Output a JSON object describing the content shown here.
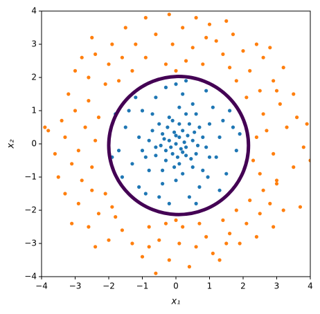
{
  "chart_data": {
    "type": "scatter",
    "xlabel": "x₁",
    "ylabel": "x₂",
    "xlim": [
      -4,
      4
    ],
    "ylim": [
      -4,
      4
    ],
    "xticks": [
      {
        "value": -4,
        "label": "−4"
      },
      {
        "value": -3,
        "label": "−3"
      },
      {
        "value": -2,
        "label": "−2"
      },
      {
        "value": -1,
        "label": "−1"
      },
      0,
      1,
      2,
      3,
      4
    ],
    "yticks": [
      {
        "value": -4,
        "label": "−4"
      },
      {
        "value": -3,
        "label": "−3"
      },
      {
        "value": -2,
        "label": "−2"
      },
      {
        "value": -1,
        "label": "−1"
      },
      0,
      1,
      2,
      3,
      4
    ],
    "grid": false,
    "series": [
      {
        "color": "#1f77b4",
        "x": [
          0,
          0.1,
          -0.2,
          0.3,
          -0.1,
          0.2,
          -0.4,
          0.5,
          -0.3,
          0.1,
          0.6,
          -0.6,
          0.4,
          -0.5,
          0.7,
          -0.7,
          0.2,
          -0.2,
          0.9,
          -0.9,
          0.3,
          -0.8,
          1.0,
          -1.1,
          0.8,
          0.0,
          -0.4,
          1.2,
          0.5,
          -1.0,
          1.3,
          -1.3,
          0.7,
          -0.6,
          1.1,
          0.2,
          -1.5,
          1.5,
          -0.9,
          0.4,
          -1.7,
          1.7,
          0.9,
          -1.2,
          1.3,
          -0.2,
          0.0,
          -1.6,
          1.8,
          -1.8,
          0.15,
          -0.05,
          0.25,
          -0.3,
          0.05,
          0.35,
          -0.15,
          0.45,
          -0.45,
          0.1,
          -0.25,
          0.55,
          -0.6,
          0.0,
          0.3,
          -0.1,
          0.65,
          -0.35,
          0.2,
          -0.05,
          0.8,
          -0.8,
          0.5,
          -0.4,
          0.6,
          1.0,
          -1.0,
          0.1,
          -0.7,
          0.95,
          1.4,
          -1.4,
          -0.3,
          0.6,
          1.6,
          -1.1,
          1.9,
          -1.9,
          0.3,
          -0.5
        ],
        "y": [
          0,
          0.2,
          0.1,
          -0.1,
          -0.3,
          0.4,
          0.3,
          0.1,
          -0.5,
          -0.6,
          -0.3,
          -0.1,
          0.6,
          0.6,
          0.5,
          0.4,
          -0.9,
          0.8,
          -0.1,
          -0.4,
          0.9,
          -0.8,
          0.6,
          0.2,
          -0.8,
          -1.1,
          -1.2,
          -0.4,
          1.2,
          1.0,
          0.2,
          -0.6,
          -1.3,
          1.4,
          1.1,
          1.5,
          0.5,
          -0.9,
          -1.5,
          -1.6,
          -0.2,
          0.5,
          1.6,
          1.4,
          -1.4,
          -1.8,
          1.8,
          -1.0,
          -0.2,
          0.9,
          -0.15,
          0.35,
          0.05,
          -0.2,
          -0.4,
          0.25,
          -0.1,
          -0.45,
          -0.05,
          0.6,
          0.5,
          0.35,
          -0.35,
          0.25,
          -0.35,
          0.7,
          -0.05,
          0.15,
          -0.25,
          -0.7,
          0.2,
          0.1,
          -0.7,
          -0.8,
          0.9,
          -0.4,
          -0.2,
          1.1,
          0.9,
          -1.0,
          0.7,
          1.0,
          1.7,
          -1.8,
          1.0,
          -1.3,
          0.3,
          -0.4,
          1.9,
          -1.6
        ]
      },
      {
        "color": "#ff7f0e",
        "x": [
          2.4,
          2.9,
          3.3,
          3.8,
          2.6,
          3.1,
          3.6,
          2.5,
          3.0,
          3.5,
          2.3,
          2.7,
          3.9,
          4.0,
          2.1,
          2.5,
          2.9,
          3.2,
          1.8,
          2.2,
          2.6,
          1.6,
          2.0,
          1.4,
          1.2,
          1.7,
          2.4,
          3.0,
          3.5,
          2.8,
          0.8,
          0.3,
          -0.3,
          0.5,
          -0.1,
          0.9,
          0.2,
          -0.6,
          0.6,
          -0.2,
          1.0,
          1.5,
          -0.9,
          0.0,
          -1.3,
          -1.6,
          -2.0,
          -1.2,
          -1.9,
          -2.4,
          -2.1,
          -2.6,
          -2.8,
          -1.5,
          -2.5,
          -3.0,
          -0.9,
          -1.7,
          -2.3,
          -2.6,
          -3.0,
          -3.4,
          -2.4,
          -2.9,
          -3.3,
          -3.8,
          -2.5,
          -3.1,
          -3.6,
          -3.9,
          -3.2,
          -2.7,
          -3.5,
          -2.1,
          -2.5,
          -2.9,
          -2.3,
          -1.8,
          -2.6,
          -1.6,
          -2.0,
          -3.1,
          -1.3,
          -2.4,
          -3.3,
          -1.9,
          -2.8,
          -0.8,
          -0.3,
          0.2,
          0.7,
          -0.5,
          0.1,
          0.6,
          -1.0,
          -0.2,
          0.4,
          -0.6,
          0.9,
          1.1,
          -0.8,
          0.0,
          1.4,
          1.8,
          2.2,
          1.6,
          2.1,
          2.5,
          1.9,
          2.4,
          2.8,
          1.3,
          2.9,
          3.2,
          2.6,
          1.5,
          3.7,
          3.0
        ],
        "y": [
          0.2,
          -0.3,
          0.5,
          -0.1,
          0.9,
          1.2,
          0.8,
          -0.9,
          -1.1,
          -0.7,
          -0.5,
          0.4,
          0.6,
          -0.5,
          1.4,
          1.6,
          1.9,
          2.3,
          1.9,
          2.2,
          2.6,
          2.3,
          2.8,
          2.7,
          3.1,
          3.3,
          3.0,
          1.6,
          1.5,
          2.9,
          2.4,
          2.5,
          2.4,
          2.9,
          3.0,
          3.2,
          3.5,
          3.3,
          3.8,
          3.9,
          3.6,
          3.7,
          2.6,
          2.2,
          2.2,
          2.6,
          2.4,
          3.0,
          3.0,
          2.7,
          1.8,
          2.0,
          2.6,
          3.5,
          3.2,
          2.2,
          3.8,
          1.9,
          0.8,
          1.3,
          1.0,
          0.7,
          0.1,
          -0.2,
          0.2,
          0.4,
          -0.7,
          -0.6,
          -0.3,
          0.5,
          1.5,
          0.5,
          -1.0,
          -1.5,
          -1.4,
          -1.8,
          -2.1,
          -2.2,
          -2.5,
          -2.6,
          -2.9,
          -2.4,
          -3.0,
          -3.1,
          -1.5,
          -1.9,
          -1.1,
          -2.5,
          -2.4,
          -2.5,
          -2.4,
          -2.9,
          -3.0,
          -3.1,
          -3.4,
          -3.5,
          -3.7,
          -3.9,
          -2.8,
          -3.3,
          -3.1,
          -2.3,
          -2.3,
          -2.0,
          -1.7,
          -2.7,
          -2.4,
          -2.1,
          -3.0,
          -2.8,
          -1.8,
          -3.5,
          -2.5,
          -2.0,
          -1.4,
          -3.0,
          -1.9,
          -1.2
        ]
      }
    ],
    "contour": {
      "center_x": 0.08,
      "center_y": -0.05,
      "radius": 2.08,
      "color": "#440154"
    }
  }
}
